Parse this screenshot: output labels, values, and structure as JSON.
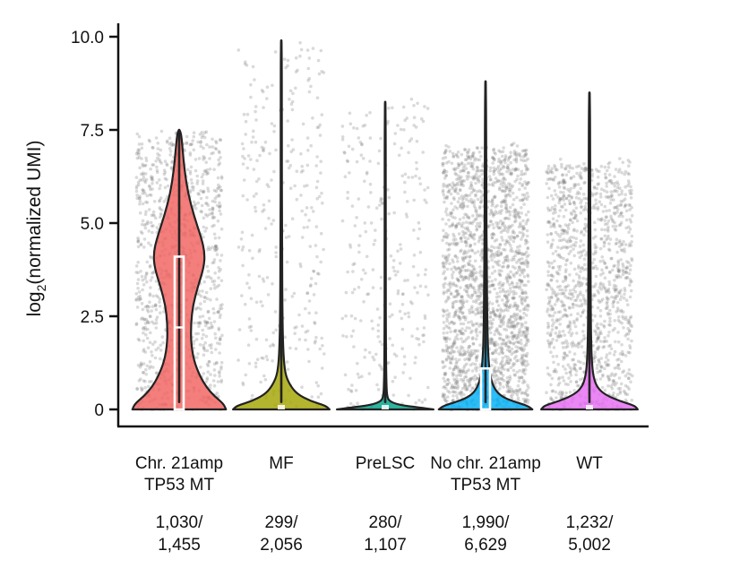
{
  "chart_data": {
    "type": "violin",
    "ylabel_main": "log",
    "ylabel_sub": "2",
    "ylabel_rest": "(normalized UMI)",
    "ylim": [
      0,
      10.4
    ],
    "yticks": [
      {
        "value": 0,
        "label": "0"
      },
      {
        "value": 2.5,
        "label": "2.5"
      },
      {
        "value": 5.0,
        "label": "5.0"
      },
      {
        "value": 7.5,
        "label": "7.5"
      },
      {
        "value": 10.0,
        "label": "10.0"
      }
    ],
    "groups": [
      {
        "name_lines": [
          "Chr. 21amp",
          "TP53 MT"
        ],
        "count_lines": [
          "1,030/",
          "1,455"
        ],
        "color": "#f0625e",
        "max": 7.5,
        "median": 2.2,
        "q1": 0.0,
        "q3": 4.1,
        "n_points": 1030,
        "point_spread": 7.4,
        "density": [
          [
            0,
            0.95
          ],
          [
            0.15,
            0.9
          ],
          [
            0.35,
            0.72
          ],
          [
            0.6,
            0.55
          ],
          [
            0.9,
            0.42
          ],
          [
            1.3,
            0.3
          ],
          [
            1.8,
            0.24
          ],
          [
            2.3,
            0.24
          ],
          [
            2.8,
            0.28
          ],
          [
            3.3,
            0.38
          ],
          [
            3.8,
            0.5
          ],
          [
            4.2,
            0.52
          ],
          [
            4.6,
            0.45
          ],
          [
            5.2,
            0.3
          ],
          [
            5.8,
            0.18
          ],
          [
            6.4,
            0.11
          ],
          [
            7.0,
            0.07
          ],
          [
            7.5,
            0.03
          ]
        ]
      },
      {
        "name_lines": [
          "MF"
        ],
        "count_lines": [
          "299/",
          "2,056"
        ],
        "color": "#a3a500",
        "max": 9.9,
        "median": 0.0,
        "q1": 0.0,
        "q3": 0.0,
        "n_points": 299,
        "point_spread": 9.8,
        "density": [
          [
            0,
            0.98
          ],
          [
            0.1,
            0.9
          ],
          [
            0.22,
            0.6
          ],
          [
            0.4,
            0.34
          ],
          [
            0.6,
            0.2
          ],
          [
            0.9,
            0.09
          ],
          [
            1.3,
            0.05
          ],
          [
            2.0,
            0.03
          ],
          [
            3.0,
            0.02
          ],
          [
            5.0,
            0.015
          ],
          [
            7.0,
            0.012
          ],
          [
            9.9,
            0.01
          ]
        ]
      },
      {
        "name_lines": [
          "PreLSC"
        ],
        "count_lines": [
          "280/",
          "1,107"
        ],
        "color": "#00a38a",
        "max": 8.25,
        "median": 0.0,
        "q1": 0.0,
        "q3": 0.0,
        "n_points": 280,
        "point_spread": 8.2,
        "density": [
          [
            0,
            0.98
          ],
          [
            0.05,
            0.7
          ],
          [
            0.12,
            0.28
          ],
          [
            0.22,
            0.08
          ],
          [
            0.35,
            0.04
          ],
          [
            0.6,
            0.025
          ],
          [
            1.5,
            0.015
          ],
          [
            4.0,
            0.012
          ],
          [
            8.25,
            0.01
          ]
        ]
      },
      {
        "name_lines": [
          "No chr. 21amp",
          "TP53 MT"
        ],
        "count_lines": [
          "1,990/",
          "6,629"
        ],
        "color": "#00b0f6",
        "max": 8.8,
        "median": 0.0,
        "q1": 0.0,
        "q3": 1.1,
        "n_points": 1990,
        "point_spread": 7.0,
        "density": [
          [
            0,
            0.95
          ],
          [
            0.1,
            0.85
          ],
          [
            0.22,
            0.55
          ],
          [
            0.35,
            0.32
          ],
          [
            0.55,
            0.18
          ],
          [
            0.85,
            0.1
          ],
          [
            1.3,
            0.06
          ],
          [
            2.0,
            0.04
          ],
          [
            3.5,
            0.025
          ],
          [
            6.0,
            0.015
          ],
          [
            8.8,
            0.01
          ]
        ]
      },
      {
        "name_lines": [
          "WT"
        ],
        "count_lines": [
          "1,232/",
          "5,002"
        ],
        "color": "#e76bf3",
        "max": 8.5,
        "median": 0.0,
        "q1": 0.0,
        "q3": 0.0,
        "n_points": 1232,
        "point_spread": 6.6,
        "density": [
          [
            0,
            0.98
          ],
          [
            0.1,
            0.92
          ],
          [
            0.22,
            0.62
          ],
          [
            0.38,
            0.34
          ],
          [
            0.55,
            0.18
          ],
          [
            0.8,
            0.09
          ],
          [
            1.2,
            0.05
          ],
          [
            2.0,
            0.03
          ],
          [
            4.0,
            0.02
          ],
          [
            6.5,
            0.014
          ],
          [
            8.5,
            0.01
          ]
        ]
      }
    ]
  }
}
